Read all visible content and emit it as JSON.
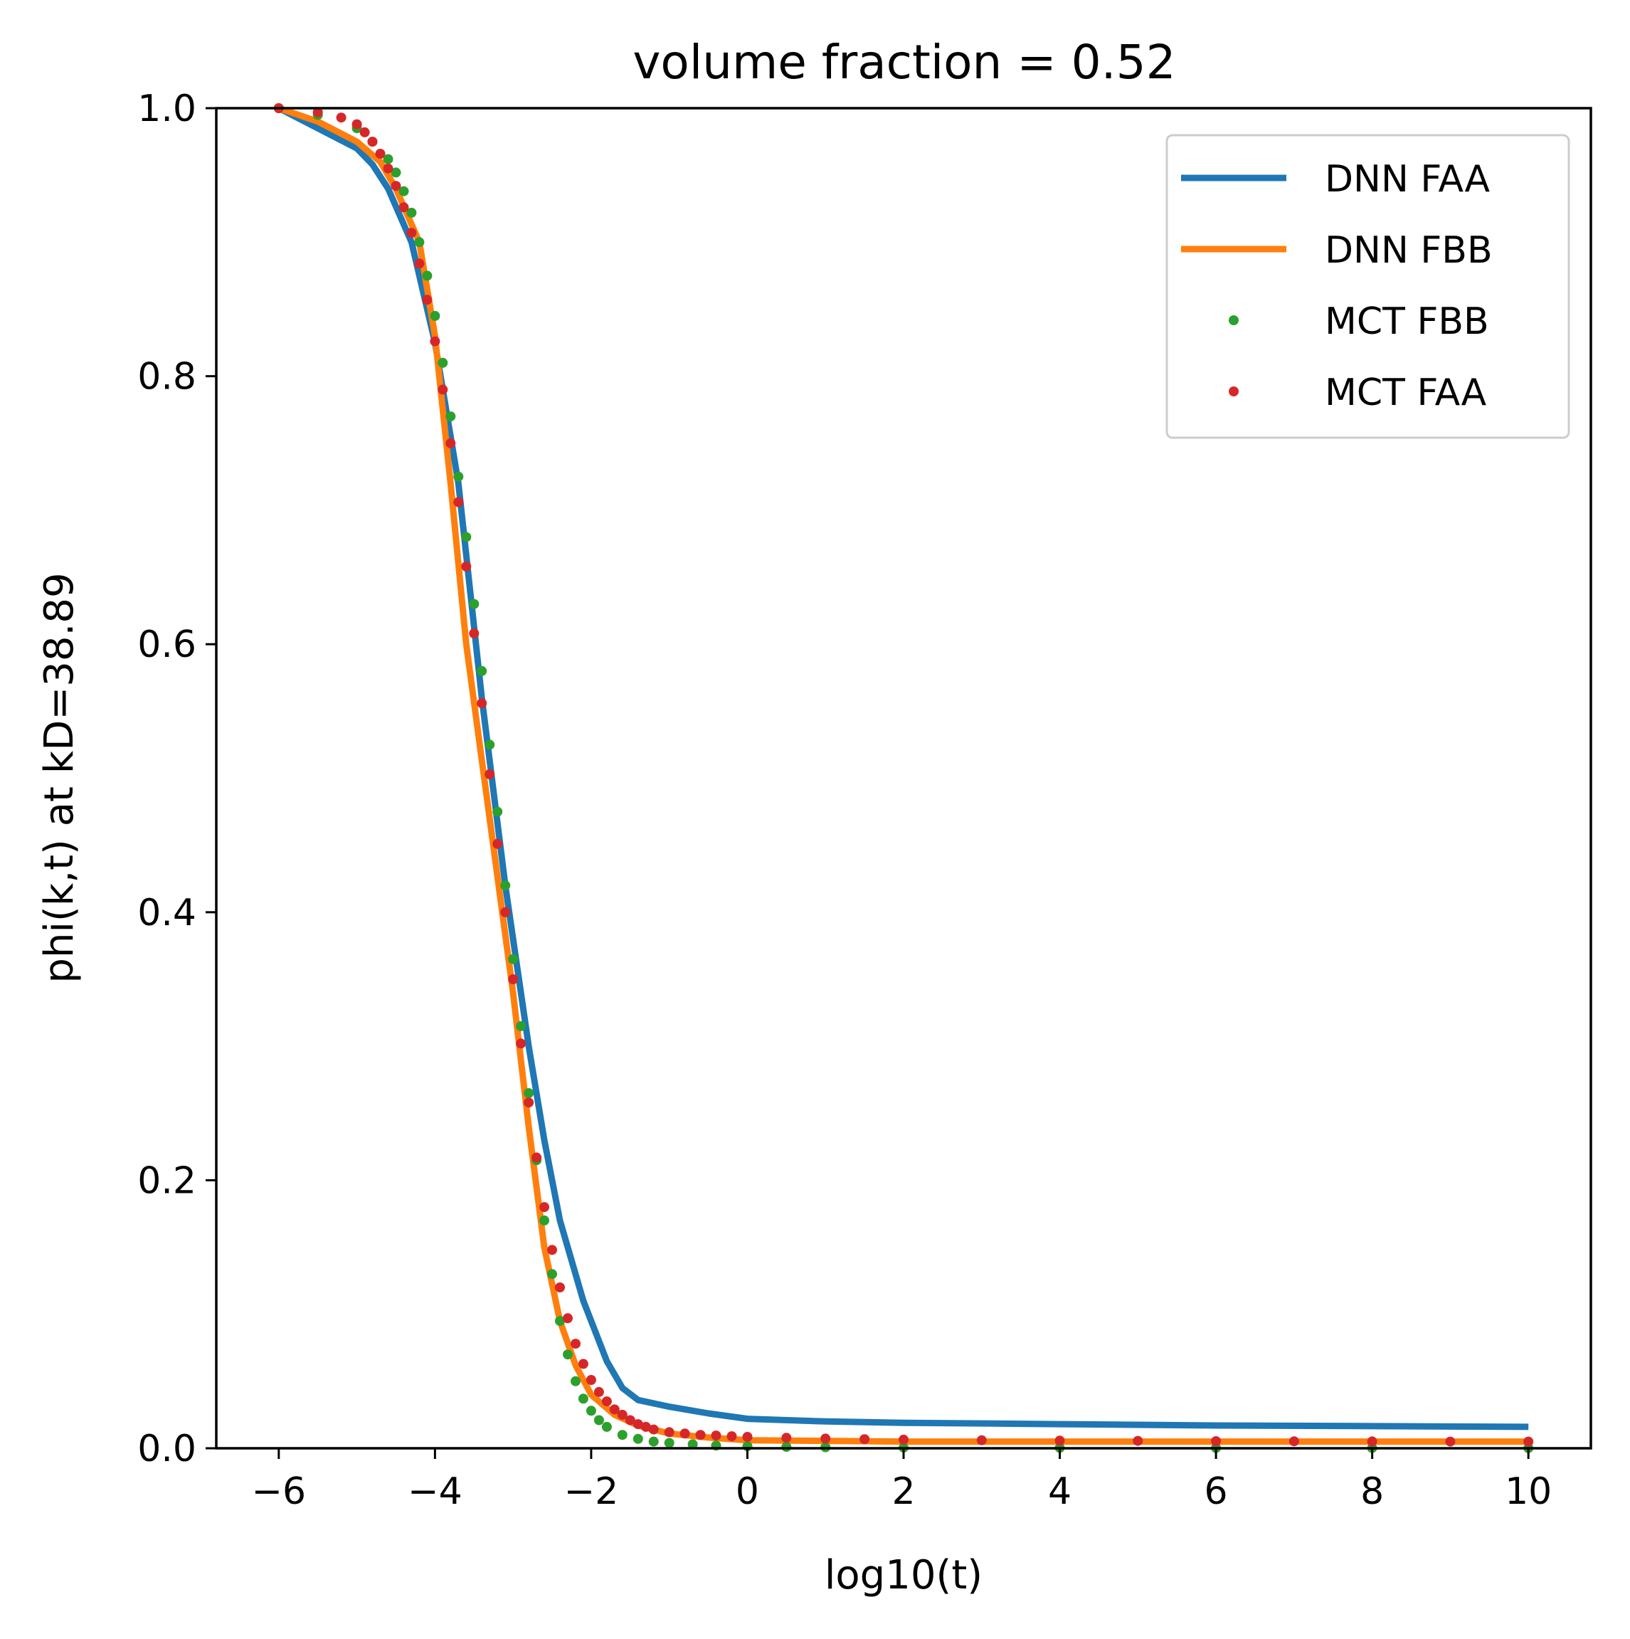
{
  "chart_data": {
    "type": "line",
    "title": "volume fraction = 0.52",
    "xlabel": "log10(t)",
    "ylabel": "phi(k,t) at kD=38.89",
    "xlim": [
      -6.8,
      10.8
    ],
    "ylim": [
      0.0,
      1.0
    ],
    "xticks": [
      -6,
      -4,
      -2,
      0,
      2,
      4,
      6,
      8,
      10
    ],
    "xtick_labels": [
      "−6",
      "−4",
      "−2",
      "0",
      "2",
      "4",
      "6",
      "8",
      "10"
    ],
    "yticks": [
      0.0,
      0.2,
      0.4,
      0.6,
      0.8,
      1.0
    ],
    "ytick_labels": [
      "0.0",
      "0.2",
      "0.4",
      "0.6",
      "0.8",
      "1.0"
    ],
    "grid": false,
    "legend_position": "top-right",
    "series": [
      {
        "name": "DNN FAA",
        "style": "line",
        "color": "#1f77b4",
        "points": [
          [
            -6.0,
            1.0
          ],
          [
            -5.5,
            0.985
          ],
          [
            -5.0,
            0.97
          ],
          [
            -4.8,
            0.958
          ],
          [
            -4.6,
            0.94
          ],
          [
            -4.3,
            0.9
          ],
          [
            -4.0,
            0.825
          ],
          [
            -3.7,
            0.72
          ],
          [
            -3.4,
            0.56
          ],
          [
            -3.1,
            0.42
          ],
          [
            -2.8,
            0.3
          ],
          [
            -2.6,
            0.23
          ],
          [
            -2.4,
            0.17
          ],
          [
            -2.1,
            0.11
          ],
          [
            -1.8,
            0.065
          ],
          [
            -1.6,
            0.045
          ],
          [
            -1.4,
            0.036
          ],
          [
            -1.0,
            0.031
          ],
          [
            -0.5,
            0.026
          ],
          [
            0.0,
            0.022
          ],
          [
            1.0,
            0.02
          ],
          [
            2.0,
            0.019
          ],
          [
            4.0,
            0.018
          ],
          [
            6.0,
            0.017
          ],
          [
            8.0,
            0.0165
          ],
          [
            10.0,
            0.016
          ]
        ]
      },
      {
        "name": "DNN FBB",
        "style": "line",
        "color": "#ff7f0e",
        "points": [
          [
            -6.0,
            1.0
          ],
          [
            -5.5,
            0.99
          ],
          [
            -5.0,
            0.975
          ],
          [
            -4.7,
            0.96
          ],
          [
            -4.5,
            0.94
          ],
          [
            -4.2,
            0.9
          ],
          [
            -4.0,
            0.83
          ],
          [
            -3.8,
            0.72
          ],
          [
            -3.6,
            0.6
          ],
          [
            -3.3,
            0.47
          ],
          [
            -3.0,
            0.34
          ],
          [
            -2.8,
            0.24
          ],
          [
            -2.6,
            0.15
          ],
          [
            -2.4,
            0.095
          ],
          [
            -2.2,
            0.062
          ],
          [
            -2.0,
            0.04
          ],
          [
            -1.7,
            0.025
          ],
          [
            -1.4,
            0.017
          ],
          [
            -1.0,
            0.011
          ],
          [
            -0.5,
            0.008
          ],
          [
            0.0,
            0.006
          ],
          [
            2.0,
            0.005
          ],
          [
            5.0,
            0.005
          ],
          [
            10.0,
            0.005
          ]
        ]
      },
      {
        "name": "MCT FBB",
        "style": "scatter",
        "color": "#2ca02c",
        "points": [
          [
            -6.0,
            1.0
          ],
          [
            -5.5,
            0.995
          ],
          [
            -5.0,
            0.985
          ],
          [
            -4.8,
            0.975
          ],
          [
            -4.6,
            0.962
          ],
          [
            -4.5,
            0.952
          ],
          [
            -4.4,
            0.938
          ],
          [
            -4.3,
            0.922
          ],
          [
            -4.2,
            0.9
          ],
          [
            -4.1,
            0.875
          ],
          [
            -4.0,
            0.845
          ],
          [
            -3.9,
            0.81
          ],
          [
            -3.8,
            0.77
          ],
          [
            -3.7,
            0.725
          ],
          [
            -3.6,
            0.68
          ],
          [
            -3.5,
            0.63
          ],
          [
            -3.4,
            0.58
          ],
          [
            -3.3,
            0.525
          ],
          [
            -3.2,
            0.475
          ],
          [
            -3.1,
            0.42
          ],
          [
            -3.0,
            0.365
          ],
          [
            -2.9,
            0.315
          ],
          [
            -2.8,
            0.265
          ],
          [
            -2.7,
            0.215
          ],
          [
            -2.6,
            0.17
          ],
          [
            -2.5,
            0.13
          ],
          [
            -2.4,
            0.095
          ],
          [
            -2.3,
            0.07
          ],
          [
            -2.2,
            0.05
          ],
          [
            -2.1,
            0.037
          ],
          [
            -2.0,
            0.028
          ],
          [
            -1.9,
            0.021
          ],
          [
            -1.8,
            0.016
          ],
          [
            -1.6,
            0.01
          ],
          [
            -1.4,
            0.007
          ],
          [
            -1.2,
            0.005
          ],
          [
            -1.0,
            0.004
          ],
          [
            -0.7,
            0.003
          ],
          [
            -0.4,
            0.002
          ],
          [
            0.0,
            0.0015
          ],
          [
            0.5,
            0.001
          ],
          [
            1.0,
            0.0008
          ],
          [
            2.0,
            0.0005
          ],
          [
            4.0,
            0.0003
          ],
          [
            6.0,
            0.0002
          ],
          [
            8.0,
            0.0002
          ],
          [
            10.0,
            0.0001
          ]
        ]
      },
      {
        "name": "MCT FAA",
        "style": "scatter",
        "color": "#d62728",
        "points": [
          [
            -6.0,
            1.0
          ],
          [
            -5.5,
            0.997
          ],
          [
            -5.2,
            0.993
          ],
          [
            -5.0,
            0.988
          ],
          [
            -4.9,
            0.982
          ],
          [
            -4.8,
            0.975
          ],
          [
            -4.7,
            0.966
          ],
          [
            -4.6,
            0.955
          ],
          [
            -4.5,
            0.942
          ],
          [
            -4.4,
            0.926
          ],
          [
            -4.3,
            0.907
          ],
          [
            -4.2,
            0.884
          ],
          [
            -4.1,
            0.857
          ],
          [
            -4.0,
            0.826
          ],
          [
            -3.9,
            0.79
          ],
          [
            -3.8,
            0.75
          ],
          [
            -3.7,
            0.706
          ],
          [
            -3.6,
            0.658
          ],
          [
            -3.5,
            0.608
          ],
          [
            -3.4,
            0.556
          ],
          [
            -3.3,
            0.503
          ],
          [
            -3.2,
            0.451
          ],
          [
            -3.1,
            0.4
          ],
          [
            -3.0,
            0.35
          ],
          [
            -2.9,
            0.302
          ],
          [
            -2.8,
            0.258
          ],
          [
            -2.7,
            0.217
          ],
          [
            -2.6,
            0.18
          ],
          [
            -2.5,
            0.148
          ],
          [
            -2.4,
            0.12
          ],
          [
            -2.3,
            0.097
          ],
          [
            -2.2,
            0.078
          ],
          [
            -2.1,
            0.063
          ],
          [
            -2.0,
            0.051
          ],
          [
            -1.9,
            0.042
          ],
          [
            -1.8,
            0.035
          ],
          [
            -1.7,
            0.029
          ],
          [
            -1.6,
            0.025
          ],
          [
            -1.5,
            0.021
          ],
          [
            -1.4,
            0.018
          ],
          [
            -1.3,
            0.016
          ],
          [
            -1.2,
            0.014
          ],
          [
            -1.0,
            0.012
          ],
          [
            -0.8,
            0.011
          ],
          [
            -0.6,
            0.01
          ],
          [
            -0.4,
            0.0095
          ],
          [
            -0.2,
            0.009
          ],
          [
            0.0,
            0.0085
          ],
          [
            0.5,
            0.0078
          ],
          [
            1.0,
            0.0072
          ],
          [
            1.5,
            0.0068
          ],
          [
            2.0,
            0.0064
          ],
          [
            3.0,
            0.006
          ],
          [
            4.0,
            0.0057
          ],
          [
            5.0,
            0.0055
          ],
          [
            6.0,
            0.0053
          ],
          [
            7.0,
            0.0052
          ],
          [
            8.0,
            0.0051
          ],
          [
            9.0,
            0.005
          ],
          [
            10.0,
            0.005
          ]
        ]
      }
    ]
  }
}
